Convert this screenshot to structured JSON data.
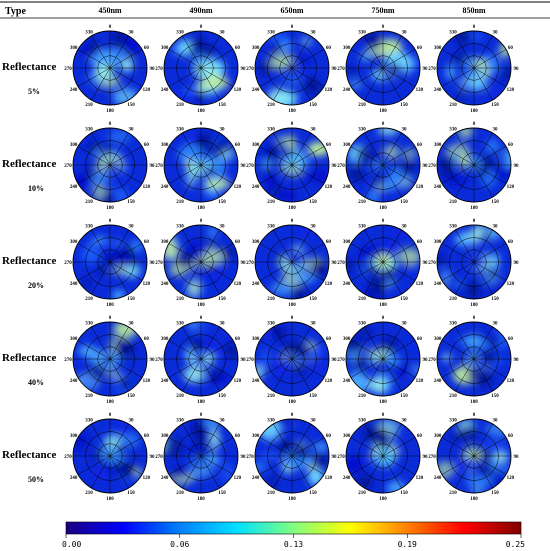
{
  "header": {
    "type_label": "Type",
    "wavelengths": [
      "450nm",
      "490nm",
      "650nm",
      "750nm",
      "850nm"
    ]
  },
  "rows": [
    {
      "label": "Reflectance",
      "value": "5%"
    },
    {
      "label": "Reflectance",
      "value": "10%"
    },
    {
      "label": "Reflectance",
      "value": "20%"
    },
    {
      "label": "Reflectance",
      "value": "40%"
    },
    {
      "label": "Reflectance",
      "value": "50%"
    }
  ],
  "angle_labels": [
    "0",
    "30",
    "60",
    "90",
    "120",
    "150",
    "180",
    "210",
    "240",
    "270",
    "300",
    "330"
  ],
  "colorbar": {
    "ticks": [
      "0.00",
      "0.06",
      "0.13",
      "0.19",
      "0.25"
    ],
    "min": 0.0,
    "max": 0.25,
    "colors": [
      "#1a0080",
      "#0000ff",
      "#0080ff",
      "#00e0ff",
      "#80ff80",
      "#ffff00",
      "#ff8000",
      "#ff0000",
      "#800000"
    ]
  },
  "chart_data": {
    "type": "heatmap",
    "projection": "polar",
    "columns": [
      "450nm",
      "490nm",
      "650nm",
      "750nm",
      "850nm"
    ],
    "rows": [
      "5%",
      "10%",
      "20%",
      "40%",
      "50%"
    ],
    "angle_ticks_deg": [
      0,
      30,
      60,
      90,
      120,
      150,
      180,
      210,
      240,
      270,
      300,
      330
    ],
    "value_range": [
      0.0,
      0.25
    ]
  }
}
